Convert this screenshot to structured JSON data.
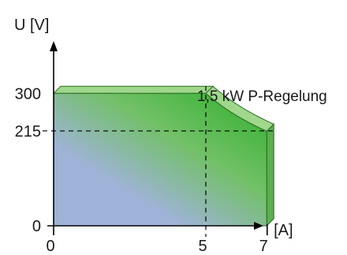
{
  "chart_data": {
    "type": "area",
    "title": "",
    "annotation": "1,5 kW P-Regelung",
    "xlabel": "I [A]",
    "ylabel": "U [V]",
    "xlim": [
      0,
      7.2
    ],
    "ylim": [
      0,
      300
    ],
    "x_ticks": [
      {
        "value": 0,
        "label": "0"
      },
      {
        "value": 5,
        "label": "5"
      },
      {
        "value": 7,
        "label": "7"
      }
    ],
    "y_ticks": [
      {
        "value": 0,
        "label": "0"
      },
      {
        "value": 215,
        "label": "215"
      },
      {
        "value": 300,
        "label": "300"
      }
    ],
    "operating_region": {
      "u_max": 300,
      "i_max": 7,
      "p_max_w": 1500,
      "boundary": [
        {
          "i": 0,
          "u": 300
        },
        {
          "i": 5,
          "u": 300
        },
        {
          "i": 5.5,
          "u": 272.7
        },
        {
          "i": 6,
          "u": 250
        },
        {
          "i": 6.5,
          "u": 230.8
        },
        {
          "i": 7,
          "u": 215
        },
        {
          "i": 7,
          "u": 0
        }
      ]
    },
    "reference_lines": [
      {
        "axis": "x",
        "value": 5
      },
      {
        "axis": "y",
        "value": 215
      }
    ],
    "colors": {
      "low_power": "#9fb3d8",
      "high_power": "#3fb43a",
      "side_face": "#5aaf4e",
      "top_face": "#9fd88c",
      "outline": "#2d6b22"
    },
    "grid": false,
    "legend": "none"
  }
}
